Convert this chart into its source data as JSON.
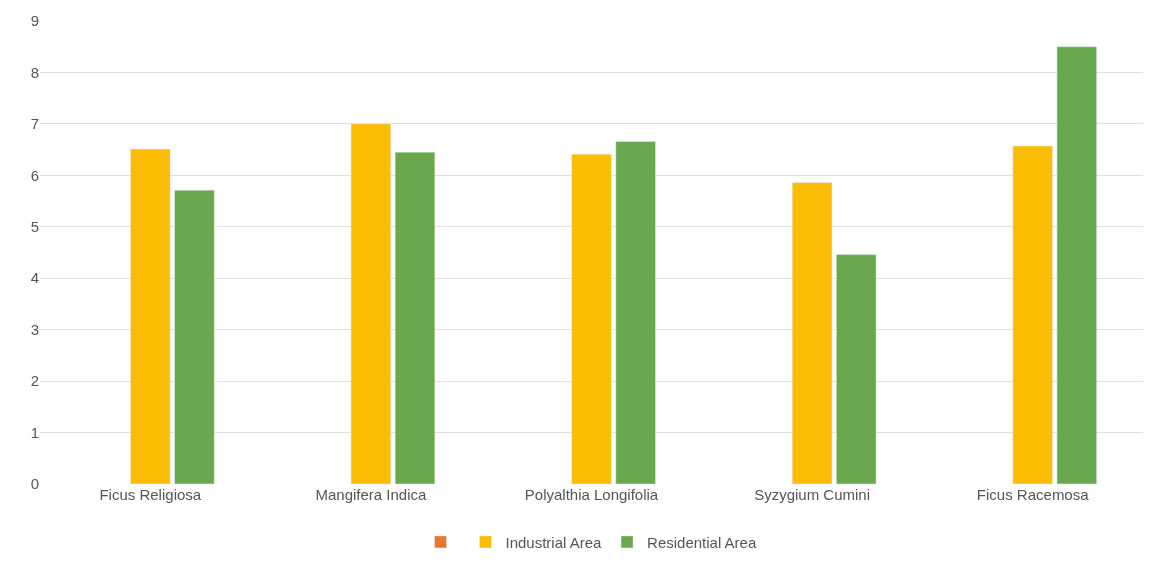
{
  "chart_data": {
    "type": "bar",
    "categories": [
      "Ficus Religiosa",
      "Mangifera Indica",
      "Polyalthia Longifolia",
      "Syzygium Cumini",
      "Ficus Racemosa"
    ],
    "series": [
      {
        "color": "#e8772e",
        "values": [
          null,
          null,
          null,
          null,
          null
        ]
      },
      {
        "name": "Industrial Area",
        "color": "#fbbc04",
        "values": [
          6.51,
          7.0,
          6.41,
          5.86,
          6.57
        ]
      },
      {
        "name": "Residential Area",
        "color": "#6aa84f",
        "values": [
          5.71,
          6.45,
          6.66,
          4.46,
          8.5
        ]
      }
    ],
    "ylim": [
      0,
      9
    ],
    "yticks": [
      0,
      1,
      2,
      3,
      4,
      5,
      6,
      7,
      8,
      9
    ],
    "grid": "y",
    "legend": "bottom"
  }
}
